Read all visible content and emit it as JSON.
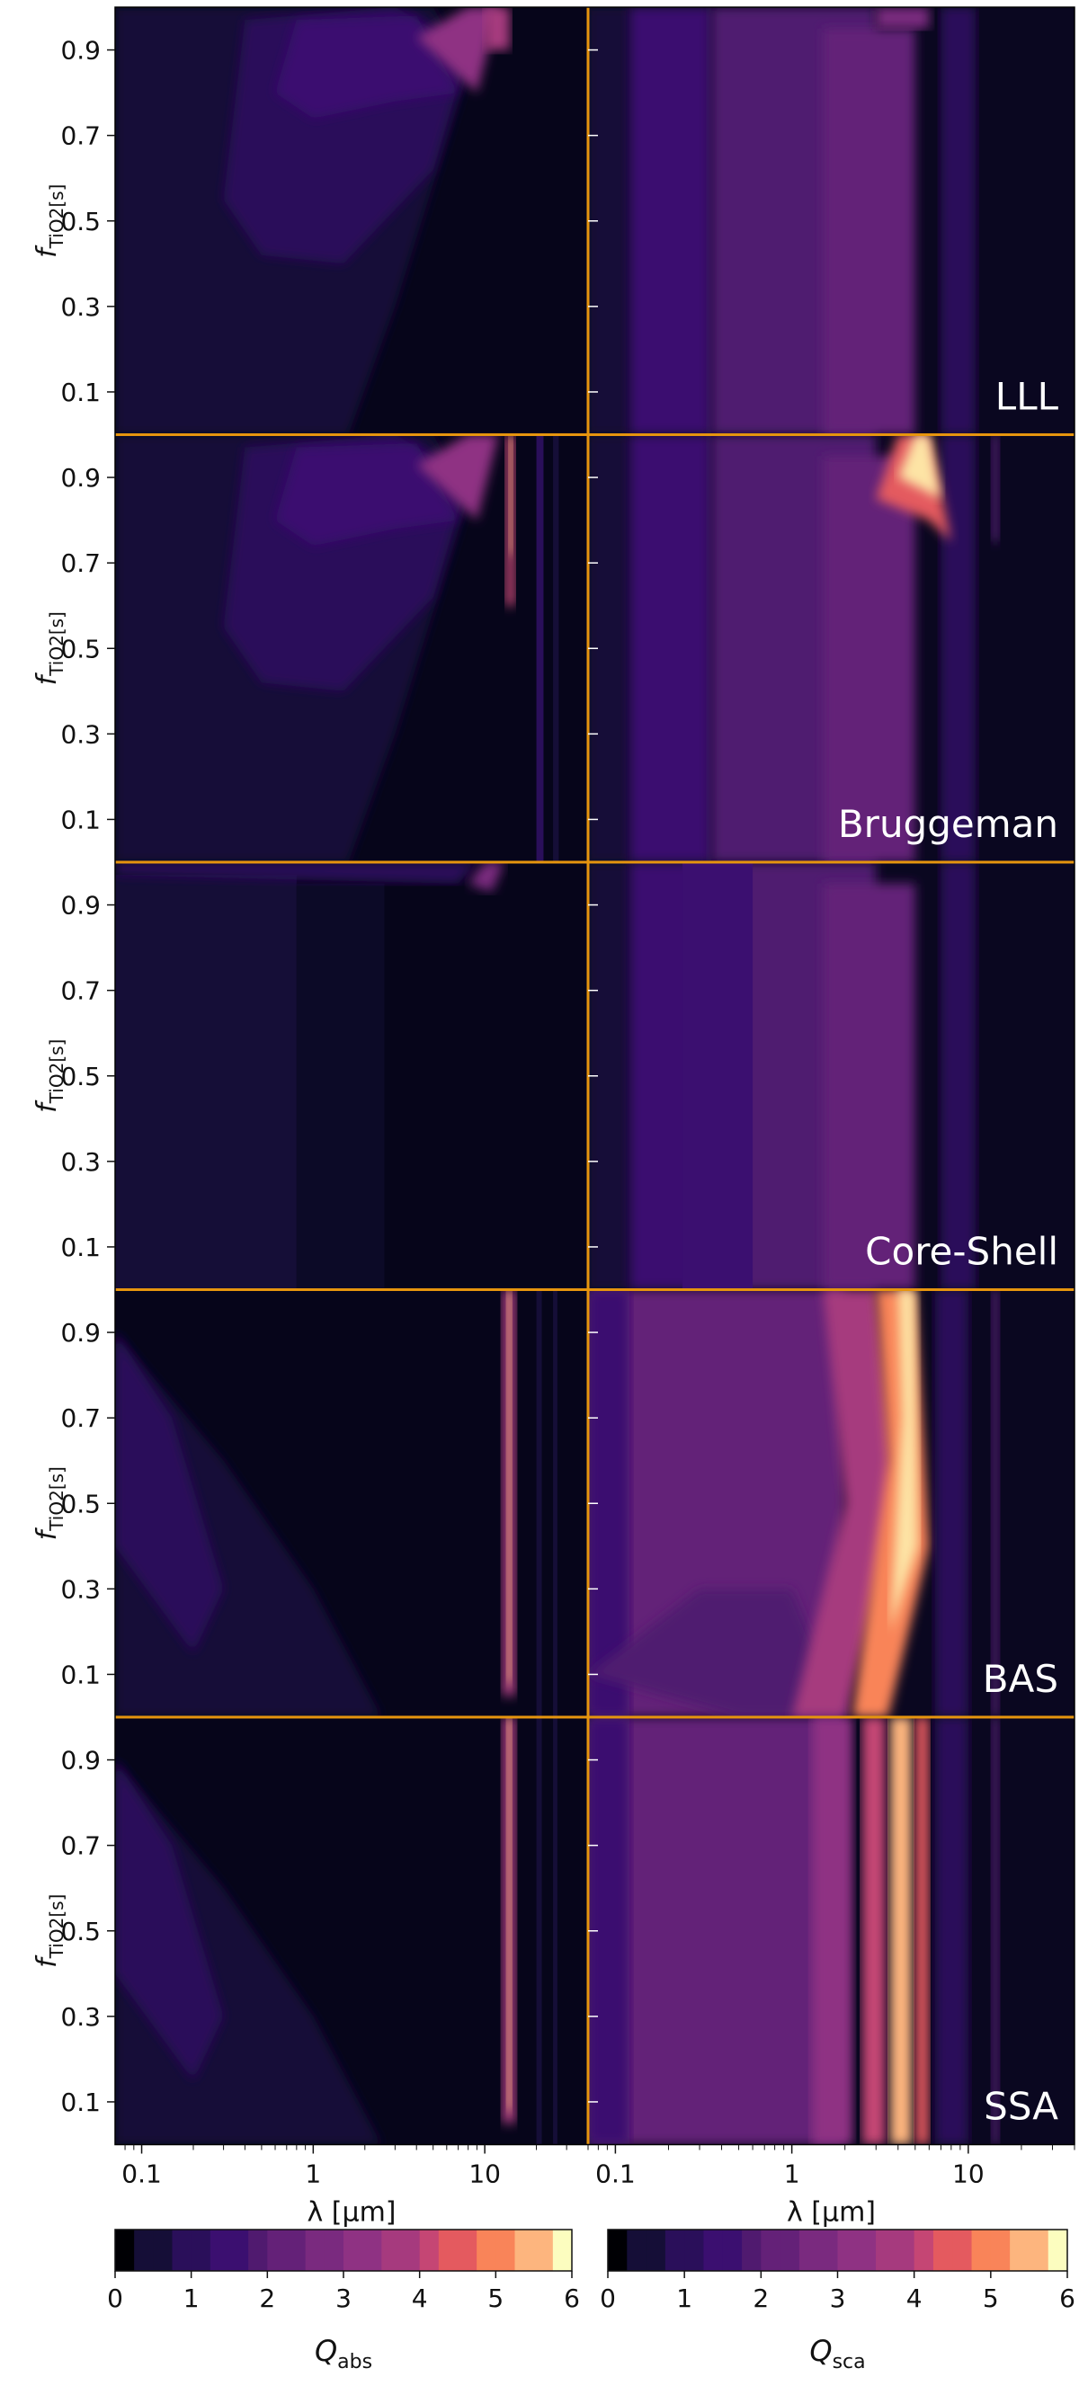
{
  "chart_data": {
    "type": "heatmap",
    "layout": "5 rows x 2 columns of filled-contour panels",
    "x_axis": {
      "label": "λ [μm]",
      "scale": "log",
      "range": [
        0.07,
        40
      ],
      "tick_labels": [
        "0.1",
        "1",
        "10"
      ],
      "tick_values": [
        0.1,
        1,
        10
      ]
    },
    "y_axis": {
      "label": "f_TiO2[s]",
      "range": [
        0,
        1
      ],
      "tick_labels": [
        "0.1",
        "0.3",
        "0.5",
        "0.7",
        "0.9"
      ],
      "tick_values": [
        0.1,
        0.3,
        0.5,
        0.7,
        0.9
      ]
    },
    "columns": [
      "Q_abs",
      "Q_sca"
    ],
    "rows": [
      "LLL",
      "Bruggeman",
      "Core-Shell",
      "BAS",
      "SSA"
    ],
    "colorbars": [
      {
        "quantity": "Q_abs",
        "label": "Q",
        "subscript": "abs",
        "ticks": [
          "0",
          "1",
          "2",
          "3",
          "4",
          "5",
          "6"
        ],
        "range": [
          0,
          6
        ]
      },
      {
        "quantity": "Q_sca",
        "label": "Q",
        "subscript": "sca",
        "ticks": [
          "0",
          "1",
          "2",
          "3",
          "4",
          "5",
          "6"
        ],
        "range": [
          0,
          6
        ]
      }
    ],
    "colormap": "magma",
    "separator_color": "#e6950e"
  }
}
